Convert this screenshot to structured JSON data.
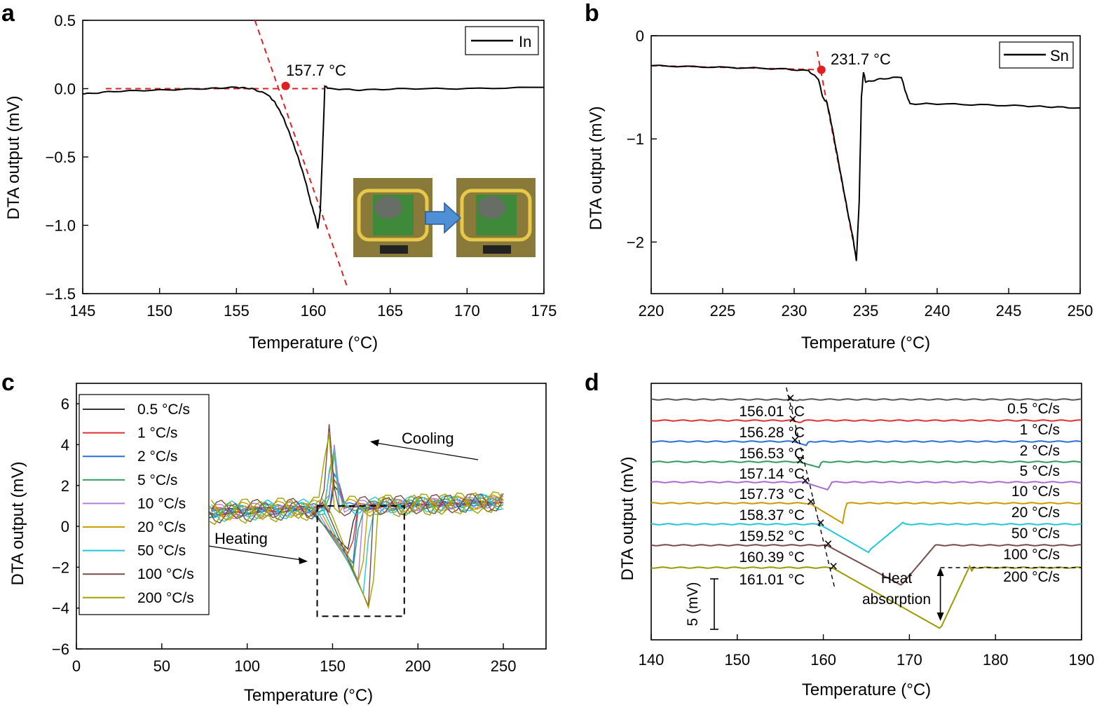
{
  "figure": {
    "panels": [
      {
        "id": "a",
        "label": "a"
      },
      {
        "id": "b",
        "label": "b"
      },
      {
        "id": "c",
        "label": "c"
      },
      {
        "id": "d",
        "label": "d"
      }
    ]
  },
  "chart_data": [
    {
      "panel": "a",
      "type": "line",
      "xlabel": "Temperature (°C)",
      "ylabel": "DTA output (mV)",
      "xlim": [
        145,
        175
      ],
      "ylim": [
        -1.5,
        0.5
      ],
      "xticks": [
        "145",
        "150",
        "155",
        "160",
        "165",
        "170",
        "175"
      ],
      "yticks": [
        "0.5",
        "0.0",
        "−0.5",
        "−1.0",
        "−1.5"
      ],
      "legend": {
        "position": "top-right",
        "entries": [
          "In"
        ]
      },
      "annotations": [
        {
          "text": "157.7 °C",
          "x": 158.2,
          "y": 0.02
        }
      ],
      "series": [
        {
          "name": "In",
          "color": "#000000",
          "x": [
            145,
            147,
            150,
            153,
            155,
            156,
            157,
            157.5,
            158,
            158.5,
            159,
            159.5,
            159.8,
            160.1,
            160.3,
            160.45,
            160.6,
            160.75,
            161,
            163,
            166,
            170,
            175
          ],
          "y": [
            -0.04,
            -0.02,
            -0.01,
            0.0,
            0.01,
            0.0,
            -0.04,
            -0.1,
            -0.2,
            -0.34,
            -0.5,
            -0.68,
            -0.82,
            -0.93,
            -1.02,
            -0.9,
            -0.45,
            0.02,
            0.0,
            -0.01,
            0.0,
            0.0,
            0.01
          ]
        }
      ],
      "fit_lines": [
        {
          "x": [
            146.5,
            160.7
          ],
          "y": [
            0.0,
            0.0
          ]
        },
        {
          "x": [
            156.2,
            162.2
          ],
          "y": [
            0.5,
            -1.45
          ]
        }
      ],
      "onset": {
        "x": 158.2,
        "y": 0.02
      },
      "inset": {
        "description": "photos",
        "arrow": "right"
      }
    },
    {
      "panel": "b",
      "type": "line",
      "xlabel": "Temperature (°C)",
      "ylabel": "DTA output (mV)",
      "xlim": [
        220,
        250
      ],
      "ylim": [
        -2.5,
        0.0
      ],
      "xticks": [
        "220",
        "225",
        "230",
        "235",
        "240",
        "245",
        "250"
      ],
      "yticks": [
        "0",
        "−1",
        "−2"
      ],
      "legend": {
        "position": "top-right",
        "entries": [
          "Sn"
        ]
      },
      "annotations": [
        {
          "text": "231.7 °C",
          "x": 231.9,
          "y": -0.3
        }
      ],
      "series": [
        {
          "name": "Sn",
          "color": "#000000",
          "x": [
            220,
            223,
            226,
            229,
            231,
            231.7,
            232.0,
            232.3,
            232.6,
            233,
            233.4,
            233.8,
            234.1,
            234.35,
            234.55,
            234.7,
            234.85,
            235,
            236,
            237.5,
            237.8,
            238.1,
            240,
            243,
            246,
            248,
            250
          ],
          "y": [
            -0.29,
            -0.3,
            -0.31,
            -0.32,
            -0.34,
            -0.42,
            -0.6,
            -0.65,
            -0.85,
            -1.15,
            -1.45,
            -1.75,
            -1.95,
            -2.18,
            -1.6,
            -0.6,
            -0.35,
            -0.45,
            -0.42,
            -0.4,
            -0.55,
            -0.66,
            -0.66,
            -0.67,
            -0.68,
            -0.69,
            -0.7
          ]
        }
      ],
      "fit_lines": [
        {
          "x": [
            220,
            232
          ],
          "y": [
            -0.29,
            -0.33
          ]
        },
        {
          "x": [
            231.6,
            234.2
          ],
          "y": [
            -0.15,
            -2.05
          ]
        }
      ],
      "onset": {
        "x": 231.9,
        "y": -0.33
      }
    },
    {
      "panel": "c",
      "type": "line",
      "xlabel": "Temperature (°C)",
      "ylabel": "DTA output (mV)",
      "xlim": [
        0,
        275
      ],
      "ylim": [
        -6,
        7
      ],
      "xticks": [
        "0",
        "50",
        "100",
        "150",
        "200",
        "250"
      ],
      "yticks": [
        "6",
        "4",
        "2",
        "0",
        "−2",
        "−4",
        "−6"
      ],
      "legend": {
        "position": "left",
        "entries": [
          "0.5 °C/s",
          "1 °C/s",
          "2 °C/s",
          "5 °C/s",
          "10 °C/s",
          "20 °C/s",
          "50 °C/s",
          "100 °C/s",
          "200 °C/s"
        ]
      },
      "annotations": [
        {
          "text": "Cooling"
        },
        {
          "text": "Heating"
        }
      ],
      "series": [
        {
          "name": "0.5 °C/s",
          "color": "#333333",
          "peak": 2.4,
          "peakT": 152,
          "dip": -1.2,
          "dipT": 160
        },
        {
          "name": "1 °C/s",
          "color": "#e23030",
          "peak": 2.8,
          "peakT": 152,
          "dip": -1.5,
          "dipT": 161
        },
        {
          "name": "2 °C/s",
          "color": "#2a6fd6",
          "peak": 3.2,
          "peakT": 152,
          "dip": -1.8,
          "dipT": 162
        },
        {
          "name": "5 °C/s",
          "color": "#2f9b5e",
          "peak": 3.6,
          "peakT": 151,
          "dip": -2.2,
          "dipT": 163
        },
        {
          "name": "10 °C/s",
          "color": "#b27fd6",
          "peak": 4.0,
          "peakT": 151,
          "dip": -2.6,
          "dipT": 165
        },
        {
          "name": "20 °C/s",
          "color": "#c9a000",
          "peak": 4.4,
          "peakT": 150,
          "dip": -3.0,
          "dipT": 167
        },
        {
          "name": "50 °C/s",
          "color": "#1fc8d8",
          "peak": 4.7,
          "peakT": 150,
          "dip": -3.5,
          "dipT": 169
        },
        {
          "name": "100 °C/s",
          "color": "#7a4a4a",
          "peak": 5.0,
          "peakT": 148,
          "dip": -3.9,
          "dipT": 171
        },
        {
          "name": "200 °C/s",
          "color": "#a3a300",
          "peak": 5.7,
          "peakT": 147,
          "dip": -4.4,
          "dipT": 173
        }
      ],
      "box": {
        "x": [
          141,
          192
        ],
        "y": [
          -4.4,
          1.0
        ]
      }
    },
    {
      "panel": "d",
      "type": "line",
      "xlabel": "Temperature (°C)",
      "ylabel": "DTA output (mV)",
      "xlim": [
        140,
        190
      ],
      "xticks": [
        "140",
        "150",
        "160",
        "170",
        "180",
        "190"
      ],
      "scale_bar": "5 (mV)",
      "annotations": [
        {
          "text": "Heat\nabsorption"
        }
      ],
      "onsets": [
        "156.01 °C",
        "156.28 °C",
        "156.53 °C",
        "157.14 °C",
        "157.73 °C",
        "158.37 °C",
        "159.52 °C",
        "160.39 °C",
        "161.01 °C"
      ],
      "series": [
        {
          "name": "0.5 °C/s",
          "color": "#555555",
          "onsetT": 156.01,
          "dipT": 157.0,
          "depth": 0.1
        },
        {
          "name": "1 °C/s",
          "color": "#e23030",
          "onsetT": 156.28,
          "dipT": 157.4,
          "depth": 0.2
        },
        {
          "name": "2 °C/s",
          "color": "#2a6fd6",
          "onsetT": 156.53,
          "dipT": 158.0,
          "depth": 0.35
        },
        {
          "name": "5 °C/s",
          "color": "#2f9b5e",
          "onsetT": 157.14,
          "dipT": 159.5,
          "depth": 0.5
        },
        {
          "name": "10 °C/s",
          "color": "#a86ad8",
          "onsetT": 157.73,
          "dipT": 160.6,
          "depth": 0.7
        },
        {
          "name": "20 °C/s",
          "color": "#c99a00",
          "onsetT": 158.37,
          "dipT": 162.3,
          "depth": 1.0
        },
        {
          "name": "50 °C/s",
          "color": "#1fc8d8",
          "onsetT": 159.52,
          "dipT": 165.3,
          "depth": 1.4
        },
        {
          "name": "100 °C/s",
          "color": "#7a4a4a",
          "onsetT": 160.39,
          "dipT": 169.2,
          "depth": 2.0
        },
        {
          "name": "200 °C/s",
          "color": "#9a9a00",
          "onsetT": 161.01,
          "dipT": 173.6,
          "depth": 3.0
        }
      ]
    }
  ]
}
